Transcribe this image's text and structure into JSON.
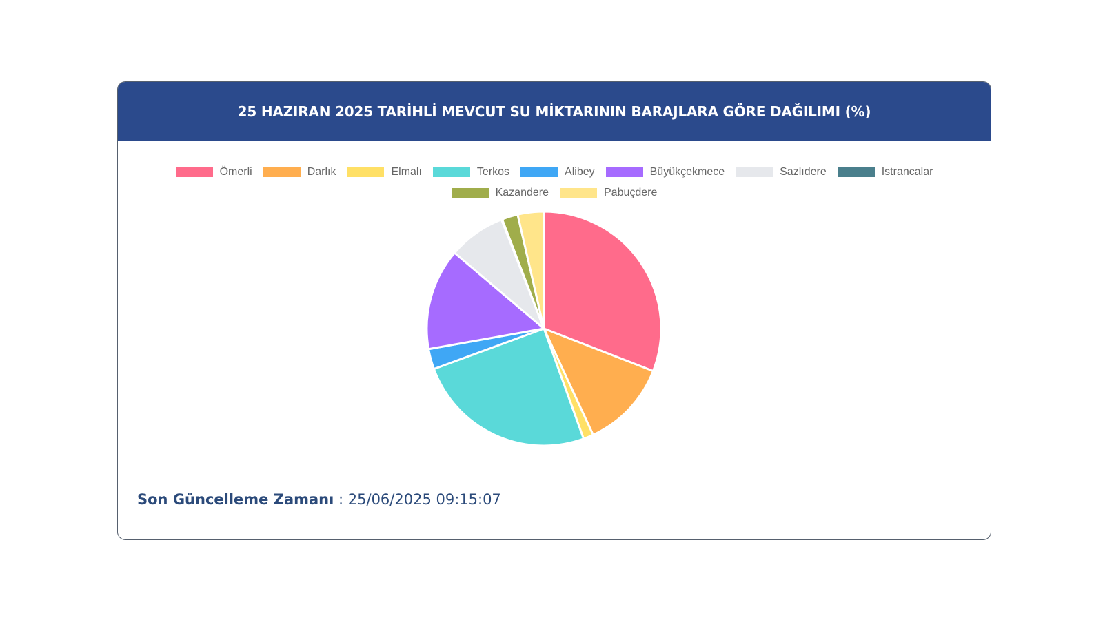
{
  "card": {
    "title": "25 HAZIRAN 2025 TARİHLİ MEVCUT SU MİKTARININ BARAJLARA GÖRE DAĞILIMI (%)"
  },
  "footer": {
    "label": "Son Güncelleme Zamanı",
    "separator": " : ",
    "value": "25/06/2025 09:15:07"
  },
  "chart_data": {
    "type": "pie",
    "title": "25 HAZIRAN 2025 TARİHLİ MEVCUT SU MİKTARININ BARAJLARA GÖRE DAĞILIMI (%)",
    "legend_position": "top",
    "categories": [
      "Ömerli",
      "Darlık",
      "Elmalı",
      "Terkos",
      "Alibey",
      "Büyükçekmece",
      "Sazlıdere",
      "Istrancalar",
      "Kazandere",
      "Pabuçdere"
    ],
    "values": [
      30.9,
      12.2,
      1.4,
      24.9,
      2.8,
      14.0,
      7.9,
      0.1,
      2.2,
      3.6
    ],
    "colors": [
      "#ff6b8b",
      "#ffae4f",
      "#ffe066",
      "#5ad9d9",
      "#3fa7f5",
      "#a66bff",
      "#e6e8ec",
      "#4a7f8c",
      "#a0ad4b",
      "#ffe58a"
    ]
  }
}
